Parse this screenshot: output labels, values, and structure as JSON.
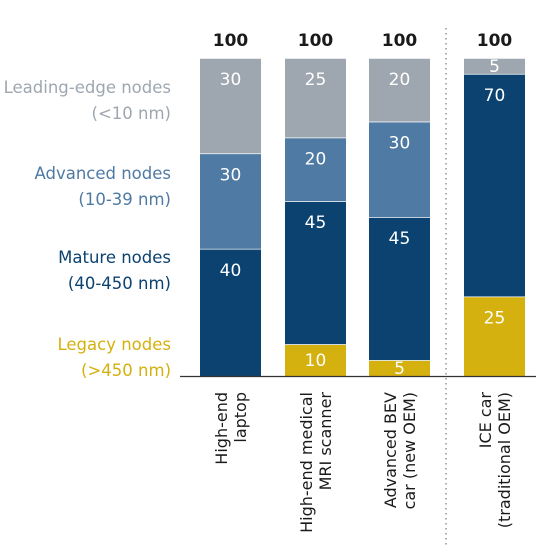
{
  "chart_data": {
    "type": "bar",
    "stacked": true,
    "title": "",
    "xlabel": "",
    "ylabel": "",
    "ylim": [
      0,
      100
    ],
    "grid": false,
    "legend_placement": "left",
    "categories": [
      [
        "High-end",
        "laptop"
      ],
      [
        "High-end medical",
        "MRI scanner"
      ],
      [
        "Advanced BEV",
        "car (new OEM)"
      ],
      [
        "ICE car",
        "(traditional OEM)"
      ]
    ],
    "totals": [
      "100",
      "100",
      "100",
      "100"
    ],
    "separator_before_category": 3,
    "series": [
      {
        "name": [
          "Legacy nodes",
          "(>450 nm)"
        ],
        "color": "#d4b10e",
        "values": [
          0,
          10,
          5,
          25
        ]
      },
      {
        "name": [
          "Mature nodes",
          "(40-450 nm)"
        ],
        "color": "#0b4270",
        "values": [
          40,
          45,
          45,
          70
        ]
      },
      {
        "name": [
          "Advanced nodes",
          "(10-39 nm)"
        ],
        "color": "#4f7aa3",
        "values": [
          30,
          20,
          30,
          0
        ]
      },
      {
        "name": [
          "Leading-edge nodes",
          "(<10 nm)"
        ],
        "color": "#9ea7b0",
        "values": [
          30,
          25,
          20,
          5
        ]
      }
    ],
    "legend_text_colors": [
      "#d4b10e",
      "#0b4270",
      "#4f7aa3",
      "#9ea7b0"
    ]
  }
}
